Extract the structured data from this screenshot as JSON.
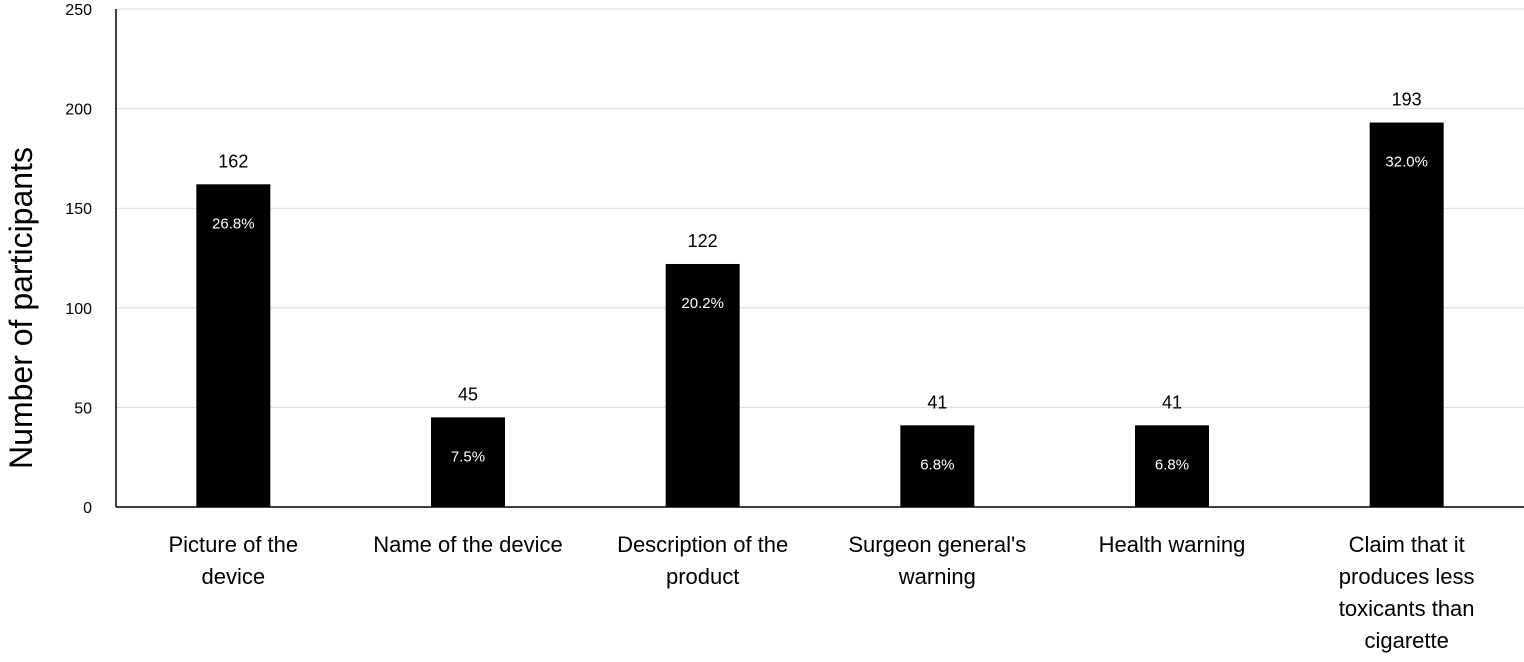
{
  "chart_data": {
    "type": "bar",
    "categories": [
      [
        "Picture of the",
        "device"
      ],
      [
        "Name of the device"
      ],
      [
        "Description of the",
        "product"
      ],
      [
        "Surgeon general's",
        "warning"
      ],
      [
        "Health warning"
      ],
      [
        "Claim that it",
        "produces less",
        "toxicants than",
        "cigarette"
      ]
    ],
    "values": [
      162,
      45,
      122,
      41,
      41,
      193
    ],
    "percent_labels": [
      "26.8%",
      "7.5%",
      "20.2%",
      "6.8%",
      "6.8%",
      "32.0%"
    ],
    "ylabel": "Number of participants",
    "ylim": [
      0,
      250
    ],
    "yticks": [
      0,
      50,
      100,
      150,
      200,
      250
    ],
    "grid": true,
    "bar_color": "#000000",
    "grid_color": "#d9d9d9"
  }
}
